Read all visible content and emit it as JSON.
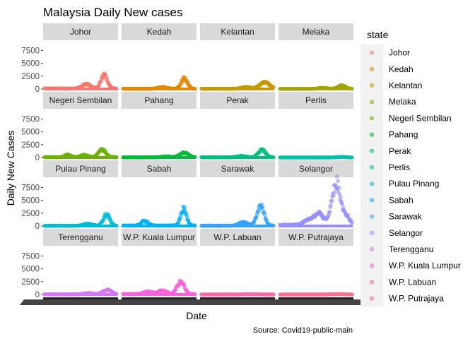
{
  "chart_data": {
    "type": "scatter",
    "title": "Malaysia Daily New cases",
    "xlabel": "Date",
    "ylabel": "Daily New Cases",
    "caption": "Source: Covid19-public-main",
    "legend_title": "state",
    "legend_position": "right",
    "grid": false,
    "facet_layout": {
      "rows": 4,
      "cols": 4
    },
    "ylim": [
      0,
      9500
    ],
    "y_ticks": [
      0,
      2500,
      5000,
      7500
    ],
    "x_ticks_legible": false,
    "series": [
      {
        "name": "Johor",
        "color": "#F8766D",
        "baseline": 80,
        "peaks": [
          {
            "at": 0.58,
            "height": 900,
            "width": 0.06
          },
          {
            "at": 0.83,
            "height": 2700,
            "width": 0.045
          }
        ]
      },
      {
        "name": "Kedah",
        "color": "#E58700",
        "baseline": 40,
        "peaks": [
          {
            "at": 0.55,
            "height": 350,
            "width": 0.06
          },
          {
            "at": 0.85,
            "height": 2100,
            "width": 0.045
          }
        ]
      },
      {
        "name": "Kelantan",
        "color": "#C99800",
        "baseline": 40,
        "peaks": [
          {
            "at": 0.62,
            "height": 350,
            "width": 0.06
          },
          {
            "at": 0.88,
            "height": 1300,
            "width": 0.07
          }
        ]
      },
      {
        "name": "Melaka",
        "color": "#A3A500",
        "baseline": 30,
        "peaks": [
          {
            "at": 0.6,
            "height": 200,
            "width": 0.06
          },
          {
            "at": 0.86,
            "height": 700,
            "width": 0.05
          }
        ]
      },
      {
        "name": "Negeri Sembilan",
        "color": "#6BB100",
        "baseline": 60,
        "peaks": [
          {
            "at": 0.32,
            "height": 500,
            "width": 0.04
          },
          {
            "at": 0.55,
            "height": 450,
            "width": 0.05
          },
          {
            "at": 0.8,
            "height": 1500,
            "width": 0.05
          }
        ]
      },
      {
        "name": "Pahang",
        "color": "#00BA38",
        "baseline": 30,
        "peaks": [
          {
            "at": 0.6,
            "height": 200,
            "width": 0.06
          },
          {
            "at": 0.85,
            "height": 900,
            "width": 0.06
          }
        ]
      },
      {
        "name": "Perak",
        "color": "#00BF7D",
        "baseline": 40,
        "peaks": [
          {
            "at": 0.55,
            "height": 250,
            "width": 0.06
          },
          {
            "at": 0.84,
            "height": 1500,
            "width": 0.05
          }
        ]
      },
      {
        "name": "Perlis",
        "color": "#00C0AF",
        "baseline": 5,
        "peaks": [
          {
            "at": 0.85,
            "height": 120,
            "width": 0.05
          }
        ]
      },
      {
        "name": "Pulau Pinang",
        "color": "#00BCD8",
        "baseline": 40,
        "peaks": [
          {
            "at": 0.6,
            "height": 400,
            "width": 0.06
          },
          {
            "at": 0.86,
            "height": 2200,
            "width": 0.045
          }
        ]
      },
      {
        "name": "Sabah",
        "color": "#00B0F6",
        "baseline": 80,
        "peaks": [
          {
            "at": 0.3,
            "height": 900,
            "width": 0.05
          },
          {
            "at": 0.84,
            "height": 3300,
            "width": 0.04
          }
        ]
      },
      {
        "name": "Sarawak",
        "color": "#35A2FF",
        "baseline": 60,
        "peaks": [
          {
            "at": 0.58,
            "height": 700,
            "width": 0.06
          },
          {
            "at": 0.82,
            "height": 3800,
            "width": 0.05
          }
        ]
      },
      {
        "name": "Selangor",
        "color": "#9590FF",
        "baseline": 180,
        "peaks": [
          {
            "at": 0.42,
            "height": 1100,
            "width": 0.08
          },
          {
            "at": 0.55,
            "height": 2000,
            "width": 0.06
          },
          {
            "at": 0.78,
            "height": 8600,
            "width": 0.06
          },
          {
            "at": 0.93,
            "height": 1500,
            "width": 0.05
          }
        ]
      },
      {
        "name": "Terengganu",
        "color": "#D575FE",
        "baseline": 40,
        "peaks": [
          {
            "at": 0.6,
            "height": 250,
            "width": 0.06
          },
          {
            "at": 0.87,
            "height": 900,
            "width": 0.06
          }
        ]
      },
      {
        "name": "W.P. Kuala Lumpur",
        "color": "#F962DD",
        "baseline": 80,
        "peaks": [
          {
            "at": 0.35,
            "height": 500,
            "width": 0.06
          },
          {
            "at": 0.55,
            "height": 700,
            "width": 0.06
          },
          {
            "at": 0.8,
            "height": 2500,
            "width": 0.05
          }
        ]
      },
      {
        "name": "W.P. Labuan",
        "color": "#FF65AC",
        "baseline": 5,
        "peaks": [
          {
            "at": 0.7,
            "height": 60,
            "width": 0.1
          }
        ]
      },
      {
        "name": "W.P. Putrajaya",
        "color": "#FF6C91",
        "baseline": 5,
        "peaks": [
          {
            "at": 0.8,
            "height": 80,
            "width": 0.08
          }
        ]
      }
    ]
  }
}
